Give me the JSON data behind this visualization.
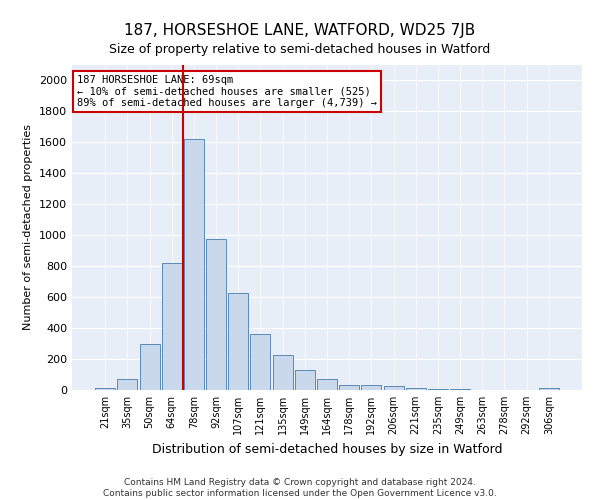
{
  "title": "187, HORSESHOE LANE, WATFORD, WD25 7JB",
  "subtitle": "Size of property relative to semi-detached houses in Watford",
  "xlabel": "Distribution of semi-detached houses by size in Watford",
  "ylabel": "Number of semi-detached properties",
  "categories": [
    "21sqm",
    "35sqm",
    "50sqm",
    "64sqm",
    "78sqm",
    "92sqm",
    "107sqm",
    "121sqm",
    "135sqm",
    "149sqm",
    "164sqm",
    "178sqm",
    "192sqm",
    "206sqm",
    "221sqm",
    "235sqm",
    "249sqm",
    "263sqm",
    "278sqm",
    "292sqm",
    "306sqm"
  ],
  "values": [
    10,
    70,
    300,
    820,
    1620,
    975,
    630,
    360,
    225,
    130,
    70,
    35,
    30,
    25,
    10,
    5,
    5,
    3,
    1,
    1,
    10
  ],
  "bar_color": "#c9d9eb",
  "bar_edge_color": "#5a8ab5",
  "vline_x": 3.5,
  "vline_color": "#cc0000",
  "annotation_line1": "187 HORSESHOE LANE: 69sqm",
  "annotation_line2": "← 10% of semi-detached houses are smaller (525)",
  "annotation_line3": "89% of semi-detached houses are larger (4,739) →",
  "annotation_box_color": "#ffffff",
  "annotation_box_edge": "#cc0000",
  "ylim": [
    0,
    2100
  ],
  "yticks": [
    0,
    200,
    400,
    600,
    800,
    1000,
    1200,
    1400,
    1600,
    1800,
    2000
  ],
  "bg_color": "#e8eef8",
  "footer1": "Contains HM Land Registry data © Crown copyright and database right 2024.",
  "footer2": "Contains public sector information licensed under the Open Government Licence v3.0.",
  "title_fontsize": 11,
  "subtitle_fontsize": 9,
  "xlabel_fontsize": 9,
  "ylabel_fontsize": 8
}
